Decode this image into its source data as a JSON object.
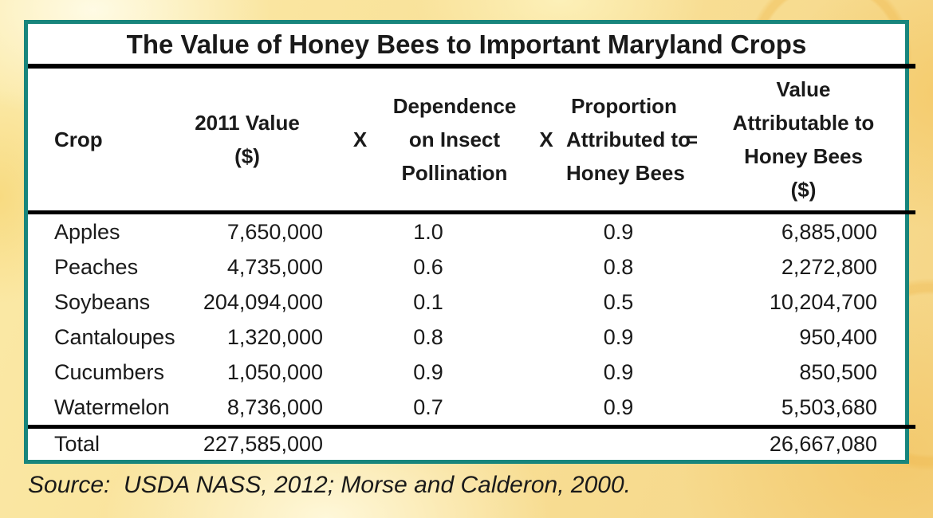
{
  "chart_data": {
    "type": "table",
    "title": "The Value of Honey Bees to Important Maryland Crops",
    "columns": [
      "Crop",
      "2011 Value ($)",
      "Dependence on Insect Pollination",
      "Proportion Attributed to Honey Bees",
      "Value Attributable to Honey Bees ($)"
    ],
    "operators": [
      "X",
      "X",
      "="
    ],
    "rows": [
      [
        "Apples",
        "7,650,000",
        "1.0",
        "0.9",
        "6,885,000"
      ],
      [
        "Peaches",
        "4,735,000",
        "0.6",
        "0.8",
        "2,272,800"
      ],
      [
        "Soybeans",
        "204,094,000",
        "0.1",
        "0.5",
        "10,204,700"
      ],
      [
        "Cantaloupes",
        "1,320,000",
        "0.8",
        "0.9",
        "950,400"
      ],
      [
        "Cucumbers",
        "1,050,000",
        "0.9",
        "0.9",
        "850,500"
      ],
      [
        "Watermelon",
        "8,736,000",
        "0.7",
        "0.9",
        "5,503,680"
      ]
    ],
    "total_row": {
      "label": "Total",
      "value_2011": "227,585,000",
      "value_attributable": "26,667,080"
    },
    "source_note": "Source:  USDA NASS, 2012; Morse and Calderon, 2000."
  },
  "header_lines": {
    "crop": [
      "Crop"
    ],
    "value_2011": [
      "2011 Value",
      "($)"
    ],
    "dependence": [
      "Dependence",
      "on Insect",
      "Pollination"
    ],
    "proportion": [
      "Proportion",
      "Attributed to",
      "Honey Bees"
    ],
    "value_attributable": [
      "Value",
      "Attributable to",
      "Honey Bees",
      "($)"
    ]
  },
  "colors": {
    "table_border_teal": "#18857c",
    "rule_black": "#000000",
    "text_black": "#1a1a1a",
    "background_gold": "#f6d88c",
    "background_cream": "#fdf3c0"
  }
}
